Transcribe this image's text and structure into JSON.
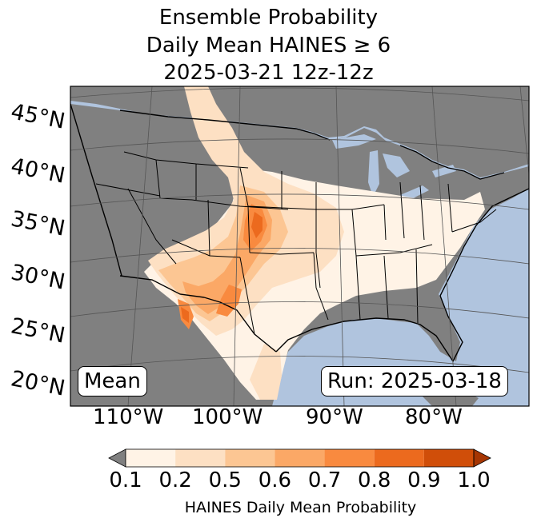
{
  "title": {
    "line1": "Ensemble Probability",
    "line2": "Daily Mean HAINES ≥ 6",
    "line3": "2025-03-21 12z-12z"
  },
  "map": {
    "latitude_labels": [
      "45°N",
      "40°N",
      "35°N",
      "30°N",
      "25°N",
      "20°N"
    ],
    "longitude_labels": [
      "110°W",
      "100°W",
      "90°W",
      "80°W"
    ],
    "stat_label": "Mean",
    "run_label": "Run: 2025-03-18",
    "colors": {
      "ocean": "#b0c4de",
      "land_masked": "#808080",
      "below_threshold": "#7f7f7f",
      "graticule": "#555555",
      "borders": "#000000"
    }
  },
  "colorbar": {
    "label": "HAINES Daily Mean Probability",
    "ticks": [
      "0.1",
      "0.2",
      "0.5",
      "0.6",
      "0.7",
      "0.8",
      "0.9",
      "1.0"
    ],
    "bins": [
      {
        "from": 0.1,
        "to": 0.2,
        "color": "#fff3e6"
      },
      {
        "from": 0.2,
        "to": 0.5,
        "color": "#fde0c3"
      },
      {
        "from": 0.5,
        "to": 0.6,
        "color": "#fcc693"
      },
      {
        "from": 0.6,
        "to": 0.7,
        "color": "#fba866"
      },
      {
        "from": 0.7,
        "to": 0.8,
        "color": "#f98a3f"
      },
      {
        "from": 0.8,
        "to": 0.9,
        "color": "#ec6a1e"
      },
      {
        "from": 0.9,
        "to": 1.0,
        "color": "#d04e09"
      }
    ],
    "under_color": "#808080",
    "over_color": "#a63603"
  }
}
